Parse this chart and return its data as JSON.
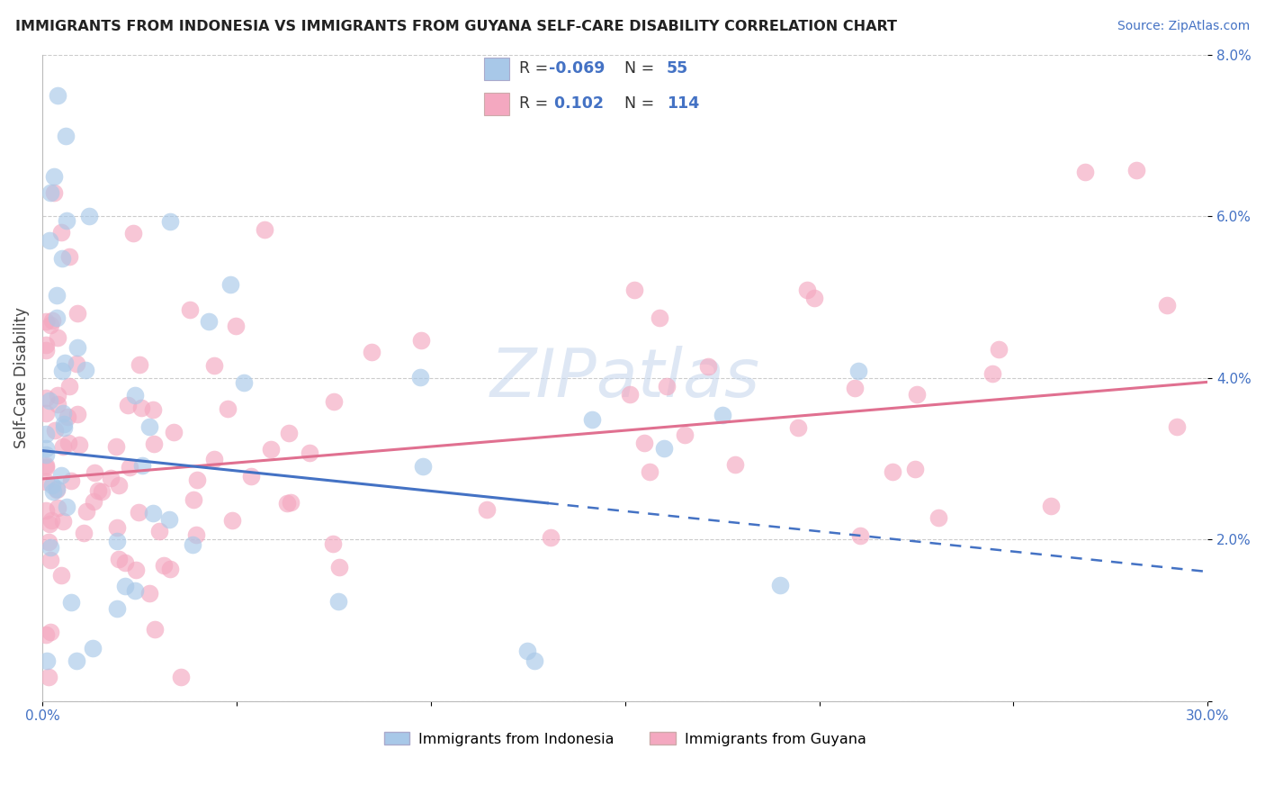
{
  "title": "IMMIGRANTS FROM INDONESIA VS IMMIGRANTS FROM GUYANA SELF-CARE DISABILITY CORRELATION CHART",
  "source": "Source: ZipAtlas.com",
  "ylabel": "Self-Care Disability",
  "xlim": [
    0.0,
    0.3
  ],
  "ylim": [
    0.0,
    0.08
  ],
  "r_indonesia": -0.069,
  "n_indonesia": 55,
  "r_guyana": 0.102,
  "n_guyana": 114,
  "color_indonesia": "#a8c8e8",
  "color_guyana": "#f4a8c0",
  "color_indonesia_line": "#4472c4",
  "color_guyana_line": "#e07090",
  "legend_label_1": "Immigrants from Indonesia",
  "legend_label_2": "Immigrants from Guyana",
  "watermark_color": "#d0dff0",
  "text_color_blue": "#4472c4",
  "grid_color": "#cccccc",
  "title_color": "#222222"
}
